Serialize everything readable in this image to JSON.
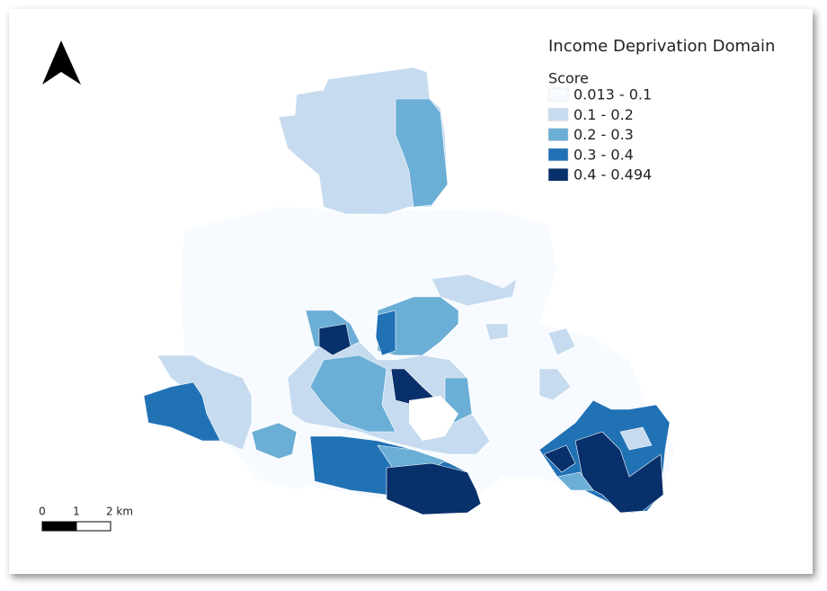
{
  "legend": {
    "title": "Income Deprivation Domain",
    "subtitle": "Score",
    "classes": [
      {
        "label": "0.013 - 0.1",
        "color": "#f7fbff"
      },
      {
        "label": "0.1 - 0.2",
        "color": "#c6dbef"
      },
      {
        "label": "0.2 - 0.3",
        "color": "#6baed6"
      },
      {
        "label": "0.3 - 0.4",
        "color": "#2171b5"
      },
      {
        "label": "0.4 - 0.494",
        "color": "#08306b"
      }
    ]
  },
  "scale_bar": {
    "labels": [
      "0",
      "1",
      "2 km"
    ]
  }
}
